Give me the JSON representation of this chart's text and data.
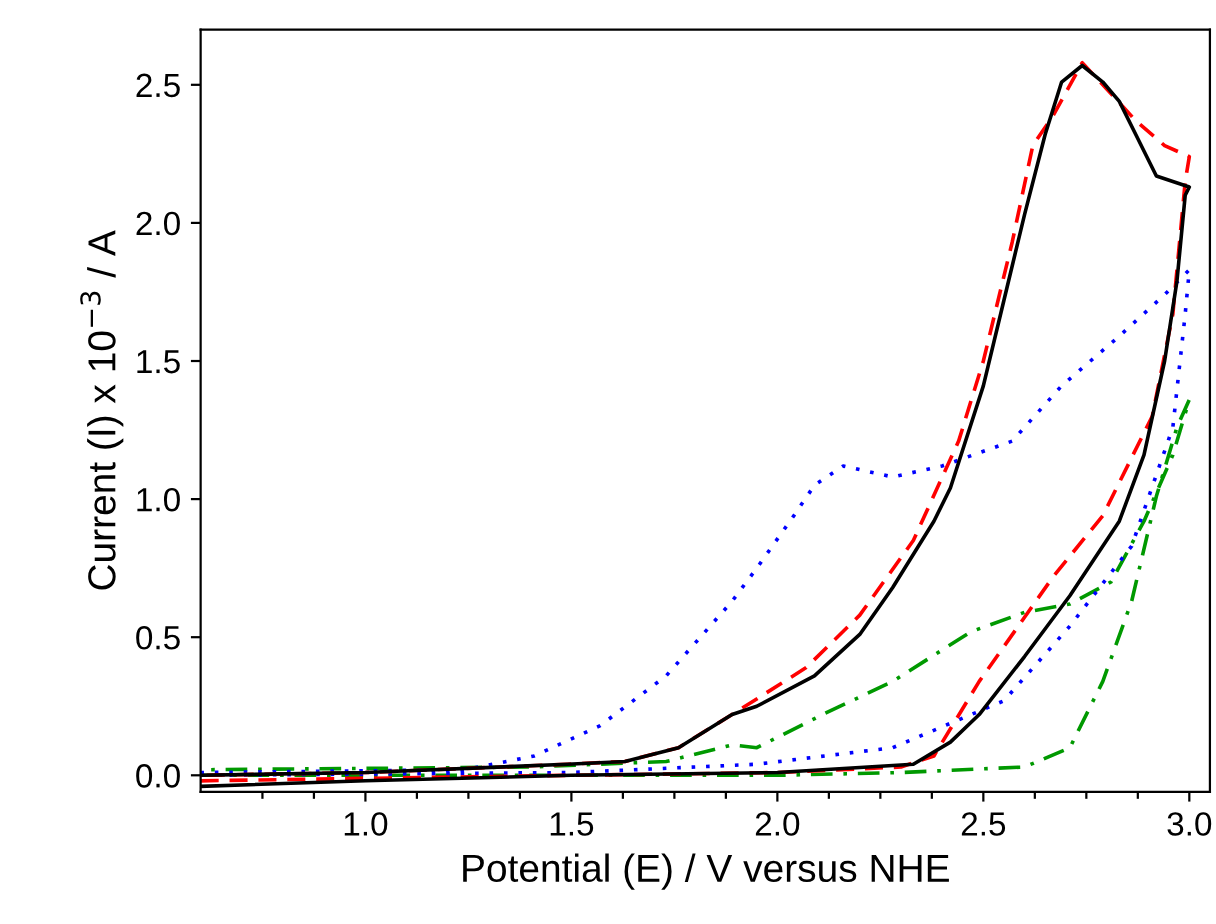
{
  "chart_data": {
    "type": "line",
    "xlabel": "Potential (E) / V versus NHE",
    "ylabel": "Current (I) x 10$^{−3}$ / A",
    "xlim": [
      0.6,
      3.05
    ],
    "ylim": [
      -0.06,
      2.7
    ],
    "xticks": [
      {
        "value": 0.75,
        "label": null
      },
      {
        "value": 0.875,
        "label": null
      },
      {
        "value": 1.0,
        "label": "1.0"
      },
      {
        "value": 1.125,
        "label": null
      },
      {
        "value": 1.25,
        "label": null
      },
      {
        "value": 1.375,
        "label": null
      },
      {
        "value": 1.5,
        "label": "1.5"
      },
      {
        "value": 1.625,
        "label": null
      },
      {
        "value": 1.75,
        "label": null
      },
      {
        "value": 1.875,
        "label": null
      },
      {
        "value": 2.0,
        "label": "2.0"
      },
      {
        "value": 2.125,
        "label": null
      },
      {
        "value": 2.25,
        "label": null
      },
      {
        "value": 2.375,
        "label": null
      },
      {
        "value": 2.5,
        "label": "2.5"
      },
      {
        "value": 2.625,
        "label": null
      },
      {
        "value": 2.75,
        "label": null
      },
      {
        "value": 2.875,
        "label": null
      },
      {
        "value": 3.0,
        "label": "3.0"
      }
    ],
    "yticks": [
      {
        "value": 0,
        "label": "0.0"
      },
      {
        "value": 0.5,
        "label": "0.5"
      },
      {
        "value": 1.0,
        "label": "1.0"
      },
      {
        "value": 1.5,
        "label": "1.5"
      },
      {
        "value": 2.0,
        "label": "2.0"
      },
      {
        "value": 2.5,
        "label": "2.5"
      }
    ],
    "grid": false,
    "marker": "none",
    "series": [
      {
        "color": "#009900",
        "line_style": "dashdot",
        "x": [
          0.6,
          1.5,
          2.0,
          2.3,
          2.6,
          2.71,
          2.79,
          2.86,
          2.92,
          2.97,
          3.0,
          2.96,
          2.89,
          2.81,
          2.71,
          2.6,
          2.47,
          2.28,
          2.11,
          1.95,
          1.89,
          1.73,
          1.4,
          0.6
        ],
        "values": [
          0.0,
          0.0,
          0.0,
          0.01,
          0.03,
          0.1,
          0.34,
          0.63,
          1.01,
          1.26,
          1.36,
          1.16,
          0.92,
          0.7,
          0.62,
          0.59,
          0.52,
          0.34,
          0.22,
          0.1,
          0.11,
          0.05,
          0.03,
          0.02
        ]
      },
      {
        "color": "#0000ff",
        "line_style": "dotted",
        "x": [
          0.6,
          1.5,
          1.95,
          2.28,
          2.55,
          2.71,
          2.86,
          2.96,
          2.99,
          3.0,
          2.94,
          2.83,
          2.69,
          2.57,
          2.4,
          2.28,
          2.16,
          2.09,
          2.04,
          1.95,
          1.89,
          1.73,
          1.57,
          1.41,
          1.24,
          0.6
        ],
        "values": [
          0.0,
          0.01,
          0.04,
          0.1,
          0.27,
          0.54,
          0.83,
          1.26,
          1.67,
          1.83,
          1.74,
          1.59,
          1.41,
          1.21,
          1.12,
          1.08,
          1.12,
          1.05,
          0.94,
          0.75,
          0.63,
          0.36,
          0.18,
          0.07,
          0.02,
          0.01
        ]
      },
      {
        "color": "#ff0000",
        "line_style": "dashed",
        "x": [
          0.6,
          1.5,
          2.0,
          2.3,
          2.38,
          2.49,
          2.67,
          2.79,
          2.91,
          2.96,
          2.99,
          3.0,
          2.94,
          2.87,
          2.79,
          2.74,
          2.67,
          2.62,
          2.57,
          2.5,
          2.44,
          2.33,
          2.2,
          2.07,
          1.89,
          1.76,
          1.63,
          1.49,
          1.0,
          0.6
        ],
        "values": [
          -0.02,
          0.0,
          0.01,
          0.03,
          0.07,
          0.34,
          0.72,
          0.94,
          1.3,
          1.67,
          2.15,
          2.24,
          2.28,
          2.37,
          2.5,
          2.58,
          2.39,
          2.28,
          1.93,
          1.5,
          1.21,
          0.85,
          0.58,
          0.39,
          0.22,
          0.1,
          0.05,
          0.04,
          0.01,
          0.0
        ]
      },
      {
        "color": "#000000",
        "line_style": "solid",
        "x": [
          0.6,
          1.0,
          1.5,
          2.0,
          2.33,
          2.42,
          2.49,
          2.6,
          2.71,
          2.83,
          2.89,
          2.94,
          2.97,
          2.99,
          3.0,
          2.92,
          2.87,
          2.83,
          2.79,
          2.74,
          2.69,
          2.65,
          2.6,
          2.55,
          2.5,
          2.42,
          2.38,
          2.28,
          2.2,
          2.09,
          1.95,
          1.89,
          1.76,
          1.63,
          1.49,
          1.0,
          0.6
        ],
        "values": [
          -0.04,
          -0.02,
          0.0,
          0.01,
          0.04,
          0.12,
          0.22,
          0.43,
          0.65,
          0.92,
          1.16,
          1.5,
          1.79,
          2.1,
          2.13,
          2.17,
          2.32,
          2.44,
          2.51,
          2.57,
          2.51,
          2.32,
          2.03,
          1.72,
          1.41,
          1.04,
          0.92,
          0.68,
          0.51,
          0.36,
          0.25,
          0.22,
          0.1,
          0.05,
          0.04,
          0.01,
          0.0
        ]
      }
    ]
  }
}
